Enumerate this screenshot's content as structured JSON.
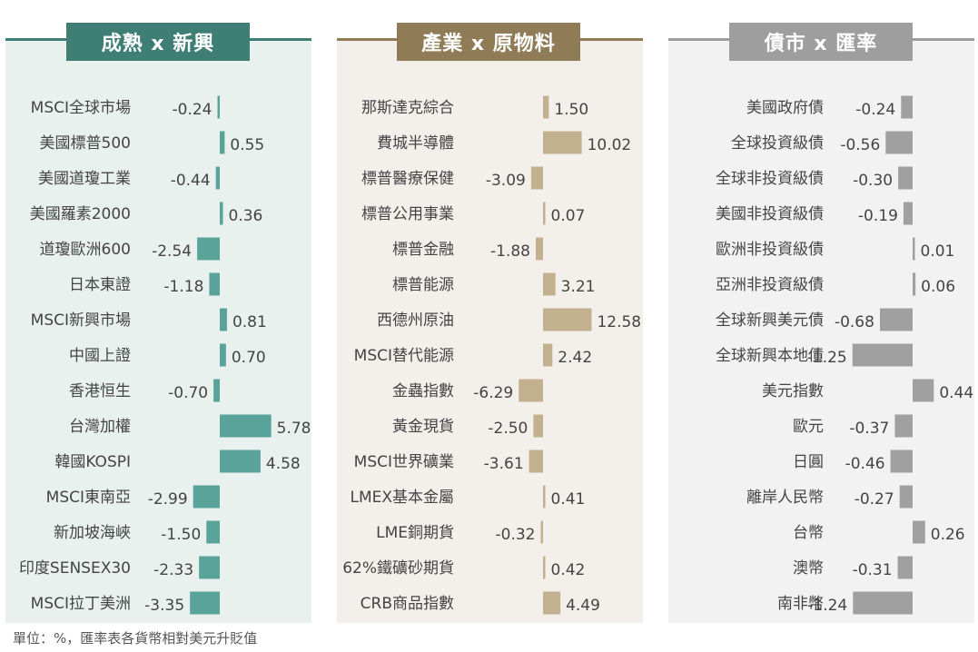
{
  "chart_data": [
    {
      "type": "bar",
      "orientation": "horizontal",
      "title": "成熟 x 新興",
      "categories": [
        "MSCI全球市場",
        "美國標普500",
        "美國道瓊工業",
        "美國羅素2000",
        "道瓊歐洲600",
        "日本東證",
        "MSCI新興市場",
        "中國上證",
        "香港恒生",
        "台灣加權",
        "韓國KOSPI",
        "MSCI東南亞",
        "新加坡海峽",
        "印度SENSEX30",
        "MSCI拉丁美洲"
      ],
      "values": [
        -0.24,
        0.55,
        -0.44,
        0.36,
        -2.54,
        -1.18,
        0.81,
        0.7,
        -0.7,
        5.78,
        4.58,
        -2.99,
        -1.5,
        -2.33,
        -3.35
      ],
      "labels": [
        "-0.24",
        "0.55",
        "-0.44",
        "0.36",
        "-2.54",
        "-1.18",
        "0.81",
        "0.70",
        "-0.70",
        "5.78",
        "4.58",
        "-2.99",
        "-1.50",
        "-2.33",
        "-3.35"
      ],
      "colors": {
        "bar": "#5aa39b",
        "header": "#3e7e74",
        "background": "#e9f1ef",
        "line": "#3e7e74"
      }
    },
    {
      "type": "bar",
      "orientation": "horizontal",
      "title": "產業 x 原物料",
      "categories": [
        "那斯達克綜合",
        "費城半導體",
        "標普醫療保健",
        "標普公用事業",
        "標普金融",
        "標普能源",
        "西德州原油",
        "MSCI替代能源",
        "金蟲指數",
        "黃金現貨",
        "MSCI世界礦業",
        "LMEX基本金屬",
        "LME銅期貨",
        "62%鐵礦砂期貨",
        "CRB商品指數"
      ],
      "values": [
        1.5,
        10.02,
        -3.09,
        0.07,
        -1.88,
        3.21,
        12.58,
        2.42,
        -6.29,
        -2.5,
        -3.61,
        0.41,
        -0.32,
        0.42,
        4.49
      ],
      "labels": [
        "1.50",
        "10.02",
        "-3.09",
        "0.07",
        "-1.88",
        "3.21",
        "12.58",
        "2.42",
        "-6.29",
        "-2.50",
        "-3.61",
        "0.41",
        "-0.32",
        "0.42",
        "4.49"
      ],
      "colors": {
        "bar": "#c2b08e",
        "header": "#8f7b55",
        "background": "#f3f0eb",
        "line": "#8f7b55"
      }
    },
    {
      "type": "bar",
      "orientation": "horizontal",
      "title": "債市 x 匯率",
      "categories": [
        "美國政府債",
        "全球投資級債",
        "全球非投資級債",
        "美國非投資級債",
        "歐洲非投資級債",
        "亞洲非投資級債",
        "全球新興美元債",
        "全球新興本地債",
        "美元指數",
        "歐元",
        "日圓",
        "離岸人民幣",
        "台幣",
        "澳幣",
        "南非幣"
      ],
      "values": [
        -0.24,
        -0.56,
        -0.3,
        -0.19,
        0.01,
        0.06,
        -0.68,
        -1.25,
        0.44,
        -0.37,
        -0.46,
        -0.27,
        0.26,
        -0.31,
        -1.24
      ],
      "labels": [
        "-0.24",
        "-0.56",
        "-0.30",
        "-0.19",
        "0.01",
        "0.06",
        "-0.68",
        "-1.25",
        "0.44",
        "-0.37",
        "-0.46",
        "-0.27",
        "0.26",
        "-0.31",
        "-1.24"
      ],
      "colors": {
        "bar": "#a0a0a0",
        "header": "#9e9e9e",
        "background": "#f2f2f2",
        "line": "#9e9e9e"
      }
    }
  ],
  "footnote": "單位：%，匯率表各貨幣相對美元升貶值"
}
